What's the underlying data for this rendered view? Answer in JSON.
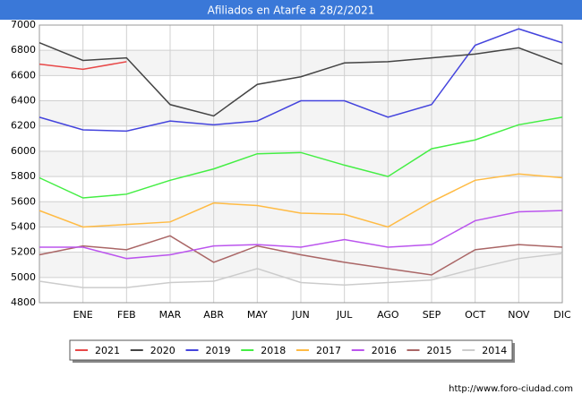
{
  "chart_data": {
    "type": "line",
    "title": "Afiliados en Atarfe a 28/2/2021",
    "categories": [
      null,
      "ENE",
      "FEB",
      "MAR",
      "ABR",
      "MAY",
      "JUN",
      "JUL",
      "AGO",
      "SEP",
      "OCT",
      "NOV",
      "DIC"
    ],
    "ylim": [
      4800,
      7000
    ],
    "yticks": [
      4800,
      5000,
      5200,
      5400,
      5600,
      5800,
      6000,
      6200,
      6400,
      6600,
      6800,
      7000
    ],
    "grid": true,
    "legend": "bottom",
    "footer": "http://www.foro-ciudad.com",
    "series": [
      {
        "name": "2021",
        "color": "#e84848",
        "values": [
          6690,
          6650,
          6710,
          null,
          null,
          null,
          null,
          null,
          null,
          null,
          null,
          null,
          null
        ]
      },
      {
        "name": "2020",
        "color": "#444444",
        "values": [
          6860,
          6720,
          6740,
          6370,
          6280,
          6530,
          6590,
          6700,
          6710,
          6740,
          6770,
          6820,
          6690
        ]
      },
      {
        "name": "2019",
        "color": "#4444dd",
        "values": [
          6270,
          6170,
          6160,
          6240,
          6210,
          6240,
          6400,
          6400,
          6270,
          6370,
          6840,
          6970,
          6860
        ]
      },
      {
        "name": "2018",
        "color": "#44ee44",
        "values": [
          5790,
          5630,
          5660,
          5770,
          5860,
          5980,
          5990,
          5890,
          5800,
          6020,
          6090,
          6210,
          6270
        ]
      },
      {
        "name": "2017",
        "color": "#ffbb44",
        "values": [
          5530,
          5400,
          5420,
          5440,
          5590,
          5570,
          5510,
          5500,
          5400,
          5600,
          5770,
          5820,
          5790
        ]
      },
      {
        "name": "2016",
        "color": "#bb55ee",
        "values": [
          5240,
          5240,
          5150,
          5180,
          5250,
          5260,
          5240,
          5300,
          5240,
          5260,
          5450,
          5520,
          5530
        ]
      },
      {
        "name": "2015",
        "color": "#aa6666",
        "values": [
          5180,
          5250,
          5220,
          5330,
          5120,
          5250,
          5180,
          5120,
          5070,
          5020,
          5220,
          5260,
          5240
        ]
      },
      {
        "name": "2014",
        "color": "#cccccc",
        "values": [
          4970,
          4920,
          4920,
          4960,
          4970,
          5070,
          4960,
          4940,
          4960,
          4980,
          5070,
          5150,
          5190
        ]
      }
    ]
  }
}
